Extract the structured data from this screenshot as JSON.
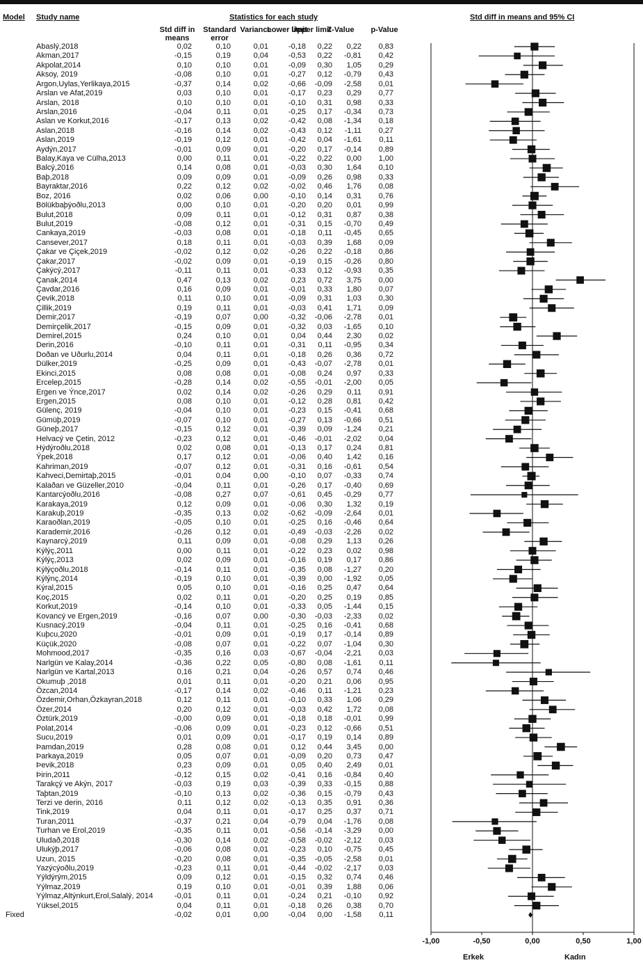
{
  "headers": {
    "model": "Model",
    "study": "Study name",
    "stats": "Statistics for each study",
    "plot": "Std diff in means and 95% CI",
    "cols": [
      "Std diff in means",
      "Standard error",
      "Variance",
      "Lower limit",
      "Upper limit",
      "Z-Value",
      "p-Value"
    ]
  },
  "model_label": "Fixed",
  "side_labels": {
    "left": "Erkek",
    "right": "Kadın"
  },
  "chart_data": {
    "type": "forest",
    "x_ticks": [
      "-1,00",
      "-0,50",
      "0,00",
      "0,50",
      "1,00"
    ],
    "xlim": [
      -1,
      1
    ],
    "studies": [
      {
        "name": "Abaslý,2018",
        "d": "0,02",
        "se": "0,10",
        "var": "0,01",
        "lo": "-0,18",
        "hi": "0,22",
        "z": "0,22",
        "p": "0,83"
      },
      {
        "name": "Akman,2017",
        "d": "-0,15",
        "se": "0,19",
        "var": "0,04",
        "lo": "-0,53",
        "hi": "0,22",
        "z": "-0,81",
        "p": "0,42"
      },
      {
        "name": "Akpolat,2014",
        "d": "0,10",
        "se": "0,10",
        "var": "0,01",
        "lo": "-0,09",
        "hi": "0,30",
        "z": "1,05",
        "p": "0,29"
      },
      {
        "name": "Aksoy, 2019",
        "d": "-0,08",
        "se": "0,10",
        "var": "0,01",
        "lo": "-0,27",
        "hi": "0,12",
        "z": "-0,79",
        "p": "0,43"
      },
      {
        "name": "Argon,Uylas,Yerlikaya,2015",
        "d": "-0,37",
        "se": "0,14",
        "var": "0,02",
        "lo": "-0,66",
        "hi": "-0,09",
        "z": "-2,58",
        "p": "0,01"
      },
      {
        "name": "Arslan ve Afat,2019",
        "d": "0,03",
        "se": "0,10",
        "var": "0,01",
        "lo": "-0,17",
        "hi": "0,23",
        "z": "0,29",
        "p": "0,77"
      },
      {
        "name": "Arslan, 2018",
        "d": "0,10",
        "se": "0,10",
        "var": "0,01",
        "lo": "-0,10",
        "hi": "0,31",
        "z": "0,98",
        "p": "0,33"
      },
      {
        "name": "Arslan,2016",
        "d": "-0,04",
        "se": "0,11",
        "var": "0,01",
        "lo": "-0,25",
        "hi": "0,17",
        "z": "-0,34",
        "p": "0,73"
      },
      {
        "name": "Aslan ve Korkut,2016",
        "d": "-0,17",
        "se": "0,13",
        "var": "0,02",
        "lo": "-0,42",
        "hi": "0,08",
        "z": "-1,34",
        "p": "0,18"
      },
      {
        "name": "Aslan,2018",
        "d": "-0,16",
        "se": "0,14",
        "var": "0,02",
        "lo": "-0,43",
        "hi": "0,12",
        "z": "-1,11",
        "p": "0,27"
      },
      {
        "name": "Aslan,2019",
        "d": "-0,19",
        "se": "0,12",
        "var": "0,01",
        "lo": "-0,42",
        "hi": "0,04",
        "z": "-1,61",
        "p": "0,11"
      },
      {
        "name": "Aydýn,2017",
        "d": "-0,01",
        "se": "0,09",
        "var": "0,01",
        "lo": "-0,20",
        "hi": "0,17",
        "z": "-0,14",
        "p": "0,89"
      },
      {
        "name": "Balay,Kaya ve Cülha,2013",
        "d": "0,00",
        "se": "0,11",
        "var": "0,01",
        "lo": "-0,22",
        "hi": "0,22",
        "z": "0,00",
        "p": "1,00"
      },
      {
        "name": "Balcý,2016",
        "d": "0,14",
        "se": "0,08",
        "var": "0,01",
        "lo": "-0,03",
        "hi": "0,30",
        "z": "1,64",
        "p": "0,10"
      },
      {
        "name": "Baþ,2018",
        "d": "0,09",
        "se": "0,09",
        "var": "0,01",
        "lo": "-0,09",
        "hi": "0,26",
        "z": "0,98",
        "p": "0,33"
      },
      {
        "name": "Bayraktar,2016",
        "d": "0,22",
        "se": "0,12",
        "var": "0,02",
        "lo": "-0,02",
        "hi": "0,46",
        "z": "1,76",
        "p": "0,08"
      },
      {
        "name": "Boz, 2016",
        "d": "0,02",
        "se": "0,06",
        "var": "0,00",
        "lo": "-0,10",
        "hi": "0,14",
        "z": "0,31",
        "p": "0,76"
      },
      {
        "name": "Bölükbaþýoðlu,2013",
        "d": "0,00",
        "se": "0,10",
        "var": "0,01",
        "lo": "-0,20",
        "hi": "0,20",
        "z": "0,01",
        "p": "0,99"
      },
      {
        "name": "Bulut,2018",
        "d": "0,09",
        "se": "0,11",
        "var": "0,01",
        "lo": "-0,12",
        "hi": "0,31",
        "z": "0,87",
        "p": "0,38"
      },
      {
        "name": "Bulut,2019",
        "d": "-0,08",
        "se": "0,12",
        "var": "0,01",
        "lo": "-0,31",
        "hi": "0,15",
        "z": "-0,70",
        "p": "0,49"
      },
      {
        "name": "Cankaya,2019",
        "d": "-0,03",
        "se": "0,08",
        "var": "0,01",
        "lo": "-0,18",
        "hi": "0,11",
        "z": "-0,45",
        "p": "0,65"
      },
      {
        "name": "Cansever,2017",
        "d": "0,18",
        "se": "0,11",
        "var": "0,01",
        "lo": "-0,03",
        "hi": "0,39",
        "z": "1,68",
        "p": "0,09"
      },
      {
        "name": "Çakar ve Çiçek,2019",
        "d": "-0,02",
        "se": "0,12",
        "var": "0,02",
        "lo": "-0,26",
        "hi": "0,22",
        "z": "-0,18",
        "p": "0,86"
      },
      {
        "name": "Çakar,2017",
        "d": "-0,02",
        "se": "0,09",
        "var": "0,01",
        "lo": "-0,19",
        "hi": "0,15",
        "z": "-0,26",
        "p": "0,80"
      },
      {
        "name": "Çakýcý,2017",
        "d": "-0,11",
        "se": "0,11",
        "var": "0,01",
        "lo": "-0,33",
        "hi": "0,12",
        "z": "-0,93",
        "p": "0,35"
      },
      {
        "name": "Çanak,2014",
        "d": "0,47",
        "se": "0,13",
        "var": "0,02",
        "lo": "0,23",
        "hi": "0,72",
        "z": "3,75",
        "p": "0,00"
      },
      {
        "name": "Çavdar,2016",
        "d": "0,16",
        "se": "0,09",
        "var": "0,01",
        "lo": "-0,01",
        "hi": "0,33",
        "z": "1,80",
        "p": "0,07"
      },
      {
        "name": "Çevik,2018",
        "d": "0,11",
        "se": "0,10",
        "var": "0,01",
        "lo": "-0,09",
        "hi": "0,31",
        "z": "1,03",
        "p": "0,30"
      },
      {
        "name": "Çillik,2019",
        "d": "0,19",
        "se": "0,11",
        "var": "0,01",
        "lo": "-0,03",
        "hi": "0,41",
        "z": "1,71",
        "p": "0,09"
      },
      {
        "name": "Demir,2017",
        "d": "-0,19",
        "se": "0,07",
        "var": "0,00",
        "lo": "-0,32",
        "hi": "-0,06",
        "z": "-2,78",
        "p": "0,01"
      },
      {
        "name": "Demirçelik,2017",
        "d": "-0,15",
        "se": "0,09",
        "var": "0,01",
        "lo": "-0,32",
        "hi": "0,03",
        "z": "-1,65",
        "p": "0,10"
      },
      {
        "name": "Demirel,2015",
        "d": "0,24",
        "se": "0,10",
        "var": "0,01",
        "lo": "0,04",
        "hi": "0,44",
        "z": "2,30",
        "p": "0,02"
      },
      {
        "name": "Derin,2016",
        "d": "-0,10",
        "se": "0,11",
        "var": "0,01",
        "lo": "-0,31",
        "hi": "0,11",
        "z": "-0,95",
        "p": "0,34"
      },
      {
        "name": "Doðan ve Uðurlu,2014",
        "d": "0,04",
        "se": "0,11",
        "var": "0,01",
        "lo": "-0,18",
        "hi": "0,26",
        "z": "0,36",
        "p": "0,72"
      },
      {
        "name": "Dülker,2019",
        "d": "-0,25",
        "se": "0,09",
        "var": "0,01",
        "lo": "-0,43",
        "hi": "-0,07",
        "z": "-2,78",
        "p": "0,01"
      },
      {
        "name": "Ekinci,2015",
        "d": "0,08",
        "se": "0,08",
        "var": "0,01",
        "lo": "-0,08",
        "hi": "0,24",
        "z": "0,97",
        "p": "0,33"
      },
      {
        "name": "Ercelep,2015",
        "d": "-0,28",
        "se": "0,14",
        "var": "0,02",
        "lo": "-0,55",
        "hi": "-0,01",
        "z": "-2,00",
        "p": "0,05"
      },
      {
        "name": "Ergen ve Ýnce,2017",
        "d": "0,02",
        "se": "0,14",
        "var": "0,02",
        "lo": "-0,26",
        "hi": "0,29",
        "z": "0,11",
        "p": "0,91"
      },
      {
        "name": "Ergen,2015",
        "d": "0,08",
        "se": "0,10",
        "var": "0,01",
        "lo": "-0,12",
        "hi": "0,28",
        "z": "0,81",
        "p": "0,42"
      },
      {
        "name": "Gülenç, 2019",
        "d": "-0,04",
        "se": "0,10",
        "var": "0,01",
        "lo": "-0,23",
        "hi": "0,15",
        "z": "-0,41",
        "p": "0,68"
      },
      {
        "name": "Gümüþ,2019",
        "d": "-0,07",
        "se": "0,10",
        "var": "0,01",
        "lo": "-0,27",
        "hi": "0,13",
        "z": "-0,66",
        "p": "0,51"
      },
      {
        "name": "Güneþ,2017",
        "d": "-0,15",
        "se": "0,12",
        "var": "0,01",
        "lo": "-0,39",
        "hi": "0,09",
        "z": "-1,24",
        "p": "0,21"
      },
      {
        "name": "Helvacý ve Çetin, 2012",
        "d": "-0,23",
        "se": "0,12",
        "var": "0,01",
        "lo": "-0,46",
        "hi": "-0,01",
        "z": "-2,02",
        "p": "0,04"
      },
      {
        "name": "Hýdýroðlu,2018",
        "d": "0,02",
        "se": "0,08",
        "var": "0,01",
        "lo": "-0,13",
        "hi": "0,17",
        "z": "0,24",
        "p": "0,81"
      },
      {
        "name": "Ýpek,2018",
        "d": "0,17",
        "se": "0,12",
        "var": "0,01",
        "lo": "-0,06",
        "hi": "0,40",
        "z": "1,42",
        "p": "0,16"
      },
      {
        "name": "Kahriman,2019",
        "d": "-0,07",
        "se": "0,12",
        "var": "0,01",
        "lo": "-0,31",
        "hi": "0,16",
        "z": "-0,61",
        "p": "0,54"
      },
      {
        "name": "Kahveci,Demirtaþ,2015",
        "d": "-0,01",
        "se": "0,04",
        "var": "0,00",
        "lo": "-0,10",
        "hi": "0,07",
        "z": "-0,33",
        "p": "0,74"
      },
      {
        "name": "Kalaðan ve Güzeller,2010",
        "d": "-0,04",
        "se": "0,11",
        "var": "0,01",
        "lo": "-0,26",
        "hi": "0,17",
        "z": "-0,40",
        "p": "0,69"
      },
      {
        "name": "Kantarcýoðlu,2016",
        "d": "-0,08",
        "se": "0,27",
        "var": "0,07",
        "lo": "-0,61",
        "hi": "0,45",
        "z": "-0,29",
        "p": "0,77"
      },
      {
        "name": "Karakaya,2019",
        "d": "0,12",
        "se": "0,09",
        "var": "0,01",
        "lo": "-0,06",
        "hi": "0,30",
        "z": "1,32",
        "p": "0,19"
      },
      {
        "name": "Karakuþ,2019",
        "d": "-0,35",
        "se": "0,13",
        "var": "0,02",
        "lo": "-0,62",
        "hi": "-0,09",
        "z": "-2,64",
        "p": "0,01"
      },
      {
        "name": "Karaoðlan,2019",
        "d": "-0,05",
        "se": "0,10",
        "var": "0,01",
        "lo": "-0,25",
        "hi": "0,16",
        "z": "-0,46",
        "p": "0,64"
      },
      {
        "name": "Karademir,2016",
        "d": "-0,26",
        "se": "0,12",
        "var": "0,01",
        "lo": "-0,49",
        "hi": "-0,03",
        "z": "-2,26",
        "p": "0,02"
      },
      {
        "name": "Kaynarcý,2019",
        "d": "0,11",
        "se": "0,09",
        "var": "0,01",
        "lo": "-0,08",
        "hi": "0,29",
        "z": "1,13",
        "p": "0,26"
      },
      {
        "name": "Kýlýç,2011",
        "d": "0,00",
        "se": "0,11",
        "var": "0,01",
        "lo": "-0,22",
        "hi": "0,23",
        "z": "0,02",
        "p": "0,98"
      },
      {
        "name": "Kýlýç,2013",
        "d": "0,02",
        "se": "0,09",
        "var": "0,01",
        "lo": "-0,16",
        "hi": "0,19",
        "z": "0,17",
        "p": "0,86"
      },
      {
        "name": "Kýlýçoðlu,2018",
        "d": "-0,14",
        "se": "0,11",
        "var": "0,01",
        "lo": "-0,35",
        "hi": "0,08",
        "z": "-1,27",
        "p": "0,20"
      },
      {
        "name": "Kýlýnç,2014",
        "d": "-0,19",
        "se": "0,10",
        "var": "0,01",
        "lo": "-0,39",
        "hi": "0,00",
        "z": "-1,92",
        "p": "0,05"
      },
      {
        "name": "Kýral,2015",
        "d": "0,05",
        "se": "0,10",
        "var": "0,01",
        "lo": "-0,16",
        "hi": "0,25",
        "z": "0,47",
        "p": "0,64"
      },
      {
        "name": "Koç,2015",
        "d": "0,02",
        "se": "0,11",
        "var": "0,01",
        "lo": "-0,20",
        "hi": "0,25",
        "z": "0,19",
        "p": "0,85"
      },
      {
        "name": "Korkut,2019",
        "d": "-0,14",
        "se": "0,10",
        "var": "0,01",
        "lo": "-0,33",
        "hi": "0,05",
        "z": "-1,44",
        "p": "0,15"
      },
      {
        "name": "Kovancý ve Ergen,2019",
        "d": "-0,16",
        "se": "0,07",
        "var": "0,00",
        "lo": "-0,30",
        "hi": "-0,03",
        "z": "-2,33",
        "p": "0,02"
      },
      {
        "name": "Kusnacý,2019",
        "d": "-0,04",
        "se": "0,11",
        "var": "0,01",
        "lo": "-0,25",
        "hi": "0,16",
        "z": "-0,41",
        "p": "0,68"
      },
      {
        "name": "Kuþcu,2020",
        "d": "-0,01",
        "se": "0,09",
        "var": "0,01",
        "lo": "-0,19",
        "hi": "0,17",
        "z": "-0,14",
        "p": "0,89"
      },
      {
        "name": "Küçük,2020",
        "d": "-0,08",
        "se": "0,07",
        "var": "0,01",
        "lo": "-0,22",
        "hi": "0,07",
        "z": "-1,04",
        "p": "0,30"
      },
      {
        "name": "Mohmood,2017",
        "d": "-0,35",
        "se": "0,16",
        "var": "0,03",
        "lo": "-0,67",
        "hi": "-0,04",
        "z": "-2,21",
        "p": "0,03"
      },
      {
        "name": "Narlgün ve Kalay,2014",
        "d": "-0,36",
        "se": "0,22",
        "var": "0,05",
        "lo": "-0,80",
        "hi": "0,08",
        "z": "-1,61",
        "p": "0,11"
      },
      {
        "name": "Narlgün ve Kartal,2013",
        "d": "0,16",
        "se": "0,21",
        "var": "0,04",
        "lo": "-0,26",
        "hi": "0,57",
        "z": "0,74",
        "p": "0,46"
      },
      {
        "name": "Okumuþ ,2018",
        "d": "0,01",
        "se": "0,11",
        "var": "0,01",
        "lo": "-0,20",
        "hi": "0,21",
        "z": "0,06",
        "p": "0,95"
      },
      {
        "name": "Özcan,2014",
        "d": "-0,17",
        "se": "0,14",
        "var": "0,02",
        "lo": "-0,46",
        "hi": "0,11",
        "z": "-1,21",
        "p": "0,23"
      },
      {
        "name": "Özdemir,Orhan,Özkayran,2018",
        "d": "0,12",
        "se": "0,11",
        "var": "0,01",
        "lo": "-0,10",
        "hi": "0,33",
        "z": "1,06",
        "p": "0,29"
      },
      {
        "name": "Özer,2014",
        "d": "0,20",
        "se": "0,12",
        "var": "0,01",
        "lo": "-0,03",
        "hi": "0,42",
        "z": "1,72",
        "p": "0,08"
      },
      {
        "name": "Öztürk,2019",
        "d": "-0,00",
        "se": "0,09",
        "var": "0,01",
        "lo": "-0,18",
        "hi": "0,18",
        "z": "-0,01",
        "p": "0,99"
      },
      {
        "name": "Polat,2014",
        "d": "-0,06",
        "se": "0,09",
        "var": "0,01",
        "lo": "-0,23",
        "hi": "0,12",
        "z": "-0,66",
        "p": "0,51"
      },
      {
        "name": "Sucu,2019",
        "d": "0,01",
        "se": "0,09",
        "var": "0,01",
        "lo": "-0,17",
        "hi": "0,19",
        "z": "0,14",
        "p": "0,89"
      },
      {
        "name": "Þamdan,2019",
        "d": "0,28",
        "se": "0,08",
        "var": "0,01",
        "lo": "0,12",
        "hi": "0,44",
        "z": "3,45",
        "p": "0,00"
      },
      {
        "name": "Þarkaya,2019",
        "d": "0,05",
        "se": "0,07",
        "var": "0,01",
        "lo": "-0,09",
        "hi": "0,20",
        "z": "0,73",
        "p": "0,47"
      },
      {
        "name": "Þevik,2018",
        "d": "0,23",
        "se": "0,09",
        "var": "0,01",
        "lo": "0,05",
        "hi": "0,40",
        "z": "2,49",
        "p": "0,01"
      },
      {
        "name": "Þirin,2011",
        "d": "-0,12",
        "se": "0,15",
        "var": "0,02",
        "lo": "-0,41",
        "hi": "0,16",
        "z": "-0,84",
        "p": "0,40"
      },
      {
        "name": "Tarakçý ve Akýn, 2017",
        "d": "-0,03",
        "se": "0,19",
        "var": "0,03",
        "lo": "-0,39",
        "hi": "0,33",
        "z": "-0,15",
        "p": "0,88"
      },
      {
        "name": "Taþtan,2019",
        "d": "-0,10",
        "se": "0,13",
        "var": "0,02",
        "lo": "-0,36",
        "hi": "0,15",
        "z": "-0,79",
        "p": "0,43"
      },
      {
        "name": "Terzi ve derin, 2016",
        "d": "0,11",
        "se": "0,12",
        "var": "0,02",
        "lo": "-0,13",
        "hi": "0,35",
        "z": "0,91",
        "p": "0,36"
      },
      {
        "name": "Tink,2019",
        "d": "0,04",
        "se": "0,11",
        "var": "0,01",
        "lo": "-0,17",
        "hi": "0,25",
        "z": "0,37",
        "p": "0,71"
      },
      {
        "name": "Turan,2011",
        "d": "-0,37",
        "se": "0,21",
        "var": "0,04",
        "lo": "-0,79",
        "hi": "0,04",
        "z": "-1,76",
        "p": "0,08"
      },
      {
        "name": "Turhan ve Erol,2019",
        "d": "-0,35",
        "se": "0,11",
        "var": "0,01",
        "lo": "-0,56",
        "hi": "-0,14",
        "z": "-3,29",
        "p": "0,00"
      },
      {
        "name": "Uludað,2018",
        "d": "-0,30",
        "se": "0,14",
        "var": "0,02",
        "lo": "-0,58",
        "hi": "-0,02",
        "z": "-2,12",
        "p": "0,03"
      },
      {
        "name": "Ulukýþ,2017",
        "d": "-0,06",
        "se": "0,08",
        "var": "0,01",
        "lo": "-0,23",
        "hi": "0,10",
        "z": "-0,75",
        "p": "0,45"
      },
      {
        "name": "Uzun, 2015",
        "d": "-0,20",
        "se": "0,08",
        "var": "0,01",
        "lo": "-0,35",
        "hi": "-0,05",
        "z": "-2,58",
        "p": "0,01"
      },
      {
        "name": "Yazýcýoðlu,2019",
        "d": "-0,23",
        "se": "0,11",
        "var": "0,01",
        "lo": "-0,44",
        "hi": "-0,02",
        "z": "-2,17",
        "p": "0,03"
      },
      {
        "name": "Yýldýrým,2015",
        "d": "0,09",
        "se": "0,12",
        "var": "0,01",
        "lo": "-0,15",
        "hi": "0,32",
        "z": "0,74",
        "p": "0,46"
      },
      {
        "name": "Yýlmaz,2019",
        "d": "0,19",
        "se": "0,10",
        "var": "0,01",
        "lo": "-0,01",
        "hi": "0,39",
        "z": "1,88",
        "p": "0,06"
      },
      {
        "name": "Yýlmaz,Altýnkurt,Erol,Salalý, 2014",
        "d": "-0,01",
        "se": "0,11",
        "var": "0,01",
        "lo": "-0,24",
        "hi": "0,21",
        "z": "-0,10",
        "p": "0,92"
      },
      {
        "name": "Yüksel,2015",
        "d": "0,04",
        "se": "0,11",
        "var": "0,01",
        "lo": "-0,18",
        "hi": "0,26",
        "z": "0,38",
        "p": "0,70"
      }
    ],
    "summary": {
      "d": "-0,02",
      "se": "0,01",
      "var": "0,00",
      "lo": "-0,04",
      "hi": "0,00",
      "z": "-1,58",
      "p": "0,11"
    }
  }
}
